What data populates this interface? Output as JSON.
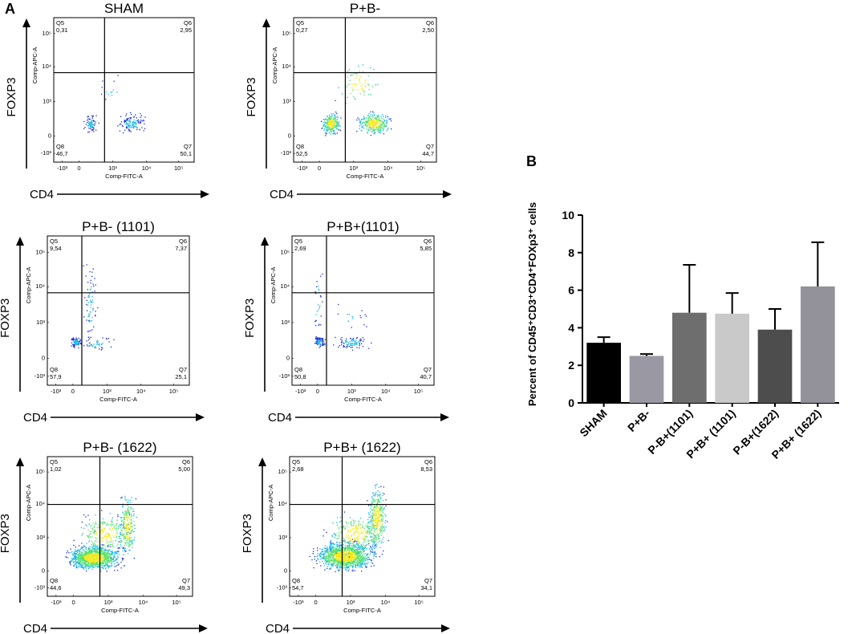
{
  "panel_labels": {
    "a": "A",
    "b": "B"
  },
  "flow_axes": {
    "x_name": "CD4",
    "y_name": "FOXP3",
    "x_param": "Comp-FITC-A",
    "y_param": "Comp-APC-A",
    "tick_labels": [
      "-10³",
      "0",
      "10³",
      "10⁴",
      "10⁵"
    ]
  },
  "colors": {
    "dot_low": "#1a2bd6",
    "dot_mid": "#18b7e6",
    "dot_high": "#55e070",
    "dot_core": "#f2e81c"
  },
  "chart_data": [
    {
      "type": "scatter",
      "title": "SHAM",
      "gate_x": 1.1,
      "gate_y": 2.7,
      "density": 0.18,
      "quadrants": [
        {
          "id": "Q5",
          "value": "0,31"
        },
        {
          "id": "Q6",
          "value": "2,95"
        },
        {
          "id": "Q7",
          "value": "50,1"
        },
        {
          "id": "Q8",
          "value": "46,7"
        }
      ]
    },
    {
      "type": "scatter",
      "title": "P+B-",
      "gate_x": 1.1,
      "gate_y": 2.7,
      "density": 0.5,
      "quadrants": [
        {
          "id": "Q5",
          "value": "0,27"
        },
        {
          "id": "Q6",
          "value": "2,50"
        },
        {
          "id": "Q7",
          "value": "44,7"
        },
        {
          "id": "Q8",
          "value": "52,5"
        }
      ]
    },
    {
      "type": "scatter",
      "title": "P+B- (1101)",
      "gate_x": 0.6,
      "gate_y": 2.7,
      "density": 0.22,
      "quadrants": [
        {
          "id": "Q5",
          "value": "9,54"
        },
        {
          "id": "Q6",
          "value": "7,37"
        },
        {
          "id": "Q7",
          "value": "25,1"
        },
        {
          "id": "Q8",
          "value": "57,9"
        }
      ]
    },
    {
      "type": "scatter",
      "title": "P+B+(1101)",
      "gate_x": 0.6,
      "gate_y": 2.7,
      "density": 0.22,
      "quadrants": [
        {
          "id": "Q5",
          "value": "2,69"
        },
        {
          "id": "Q6",
          "value": "5,85"
        },
        {
          "id": "Q7",
          "value": "40,7"
        },
        {
          "id": "Q8",
          "value": "50,8"
        }
      ]
    },
    {
      "type": "scatter",
      "title": "P+B- (1622)",
      "gate_x": 1.1,
      "gate_y": 2.9,
      "density": 1.0,
      "quadrants": [
        {
          "id": "Q5",
          "value": "1,02"
        },
        {
          "id": "Q6",
          "value": "5,00"
        },
        {
          "id": "Q7",
          "value": "49,3"
        },
        {
          "id": "Q8",
          "value": "44,6"
        }
      ]
    },
    {
      "type": "scatter",
      "title": "P+B+ (1622)",
      "gate_x": 1.1,
      "gate_y": 2.9,
      "density": 1.0,
      "quadrants": [
        {
          "id": "Q5",
          "value": "2,68"
        },
        {
          "id": "Q6",
          "value": "8,53"
        },
        {
          "id": "Q7",
          "value": "34,1"
        },
        {
          "id": "Q8",
          "value": "54,7"
        }
      ]
    },
    {
      "type": "bar",
      "ylabel": "Percent of CD45⁺CD3⁺CD4⁺FOXp3⁺ cells",
      "ylim": [
        0,
        10
      ],
      "yticks": [
        0,
        2,
        4,
        6,
        8,
        10
      ],
      "categories": [
        "SHAM",
        "P+B-",
        "P-B+(1101)",
        "P+B+ (1101)",
        "P-B+(1622)",
        "P+B+ (1622)"
      ],
      "values": [
        3.2,
        2.5,
        4.8,
        4.75,
        3.9,
        6.2
      ],
      "errors": [
        0.3,
        0.1,
        2.55,
        1.1,
        1.1,
        2.35
      ],
      "bar_colors": [
        "#000000",
        "#9a99a3",
        "#6e6e6e",
        "#c9c9c9",
        "#4d4d4d",
        "#93929a"
      ],
      "xlabel": "",
      "grid": false,
      "legend": "none"
    }
  ]
}
